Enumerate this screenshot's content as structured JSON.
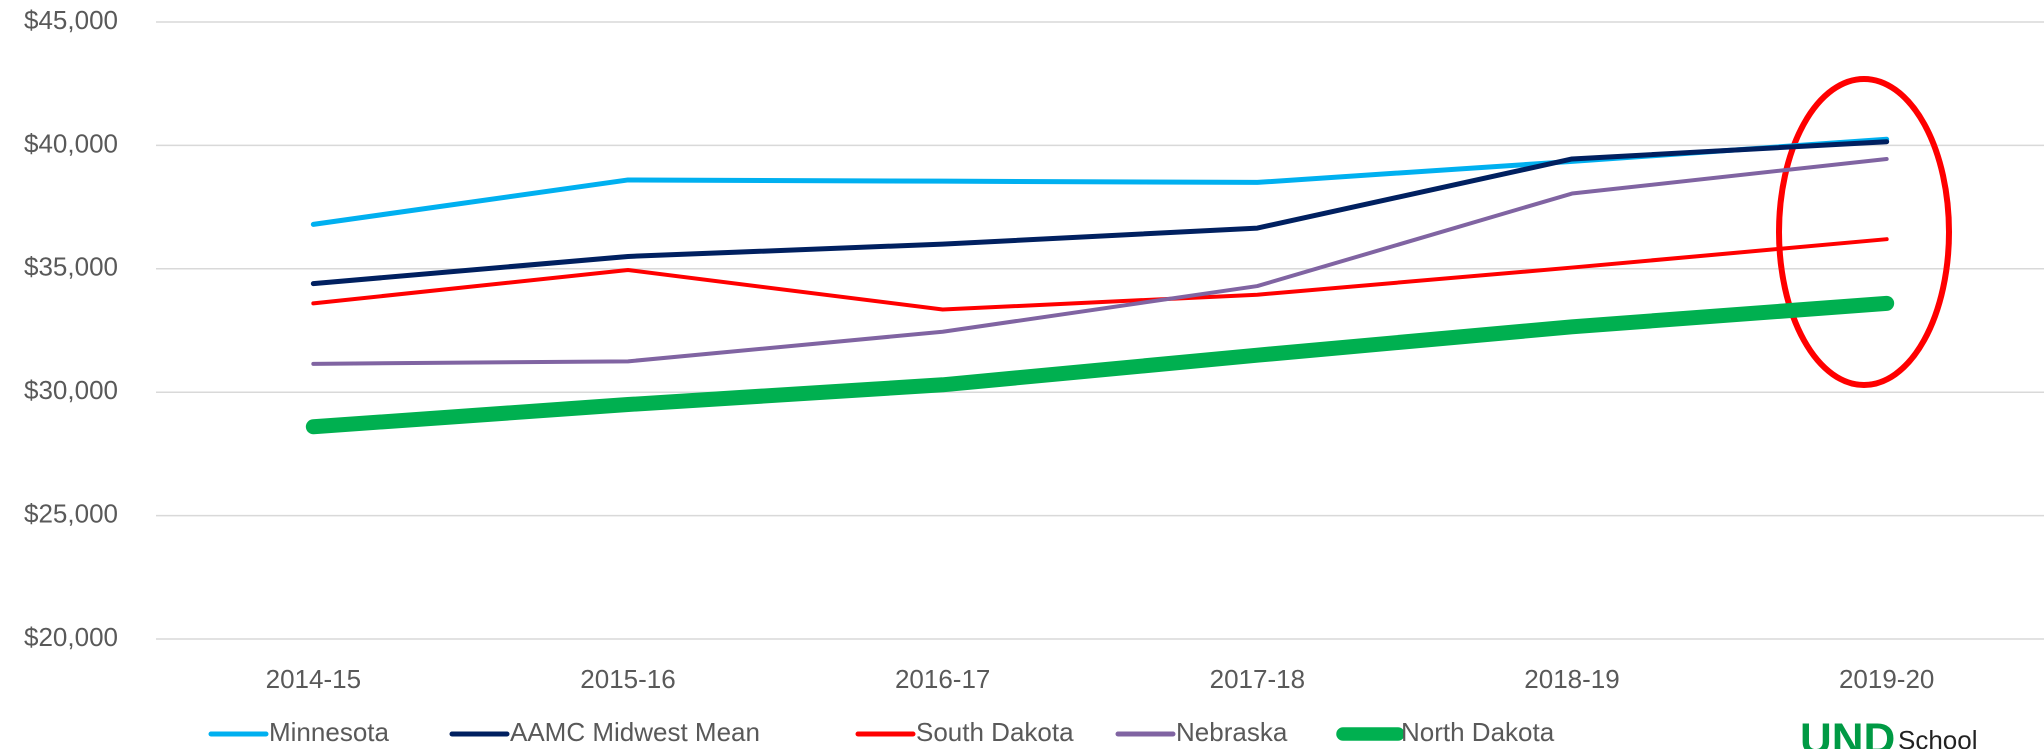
{
  "chart_data": {
    "type": "line",
    "categories": [
      "2014-15",
      "2015-16",
      "2016-17",
      "2017-18",
      "2018-19",
      "2019-20"
    ],
    "series": [
      {
        "name": "Minnesota",
        "color": "#00b0f0",
        "width": 5,
        "values": [
          36800,
          38600,
          38550,
          38500,
          39350,
          40250
        ]
      },
      {
        "name": "AAMC Midwest Mean",
        "color": "#002060",
        "width": 5,
        "values": [
          34400,
          35500,
          36000,
          36650,
          39450,
          40150
        ]
      },
      {
        "name": "South Dakota",
        "color": "#ff0000",
        "width": 4,
        "values": [
          33600,
          34950,
          33350,
          33950,
          35050,
          36200
        ]
      },
      {
        "name": "Nebraska",
        "color": "#8064a2",
        "width": 4,
        "values": [
          31150,
          31250,
          32450,
          34300,
          38050,
          39450
        ]
      },
      {
        "name": "North Dakota",
        "color": "#00b050",
        "width": 15,
        "values": [
          28600,
          29500,
          30300,
          31500,
          32650,
          33600
        ]
      }
    ],
    "ylim": [
      20000,
      45000
    ],
    "yticks": [
      {
        "value": 20000,
        "label": "$20,000"
      },
      {
        "value": 25000,
        "label": "$25,000"
      },
      {
        "value": 30000,
        "label": "$30,000"
      },
      {
        "value": 35000,
        "label": "$35,000"
      },
      {
        "value": 40000,
        "label": "$40,000"
      },
      {
        "value": 45000,
        "label": "$45,000"
      }
    ],
    "grid": true,
    "legend": "bottom"
  },
  "logo": {
    "mark": "UND",
    "text": "School"
  }
}
